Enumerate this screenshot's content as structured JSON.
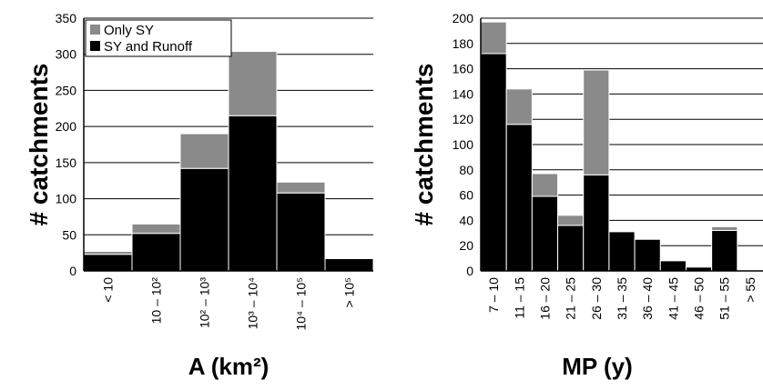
{
  "chart_data": [
    {
      "type": "bar",
      "stacked": true,
      "ylabel": "# catchments",
      "xlabel": "A (km²)",
      "ylim": [
        0,
        350
      ],
      "ytick_step": 50,
      "yticks": [
        "0",
        "50",
        "100",
        "150",
        "200",
        "250",
        "300",
        "350"
      ],
      "categories": [
        "< 10",
        "10 – 10²",
        "10² – 10³",
        "10³ – 10⁴",
        "10⁴ – 10⁵",
        "> 10⁵"
      ],
      "series": [
        {
          "name": "SY and Runoff",
          "color": "#000000",
          "values": [
            23,
            52,
            142,
            215,
            108,
            17
          ]
        },
        {
          "name": "Only SY",
          "color": "#8a8a8a",
          "values": [
            4,
            13,
            48,
            89,
            15,
            0
          ]
        }
      ],
      "grid": true,
      "legend": "top-left",
      "legend_entries": [
        "Only SY",
        "SY and Runoff"
      ]
    },
    {
      "type": "bar",
      "stacked": true,
      "ylabel": "# catchments",
      "xlabel": "MP (y)",
      "ylim": [
        0,
        200
      ],
      "ytick_step": 20,
      "yticks": [
        "0",
        "20",
        "40",
        "60",
        "80",
        "100",
        "120",
        "140",
        "160",
        "180",
        "200"
      ],
      "categories": [
        "7 – 10",
        "11 – 15",
        "16 – 20",
        "21 – 25",
        "26 – 30",
        "31 – 35",
        "36 – 40",
        "41 – 45",
        "46 – 50",
        "51 – 55",
        "> 55"
      ],
      "series": [
        {
          "name": "SY and Runoff",
          "color": "#000000",
          "values": [
            172,
            116,
            59,
            36,
            76,
            31,
            25,
            8,
            3,
            32,
            0
          ]
        },
        {
          "name": "Only SY",
          "color": "#8a8a8a",
          "values": [
            25,
            28,
            18,
            8,
            83,
            0,
            0,
            0,
            0,
            3,
            0
          ]
        }
      ],
      "grid": true
    }
  ]
}
